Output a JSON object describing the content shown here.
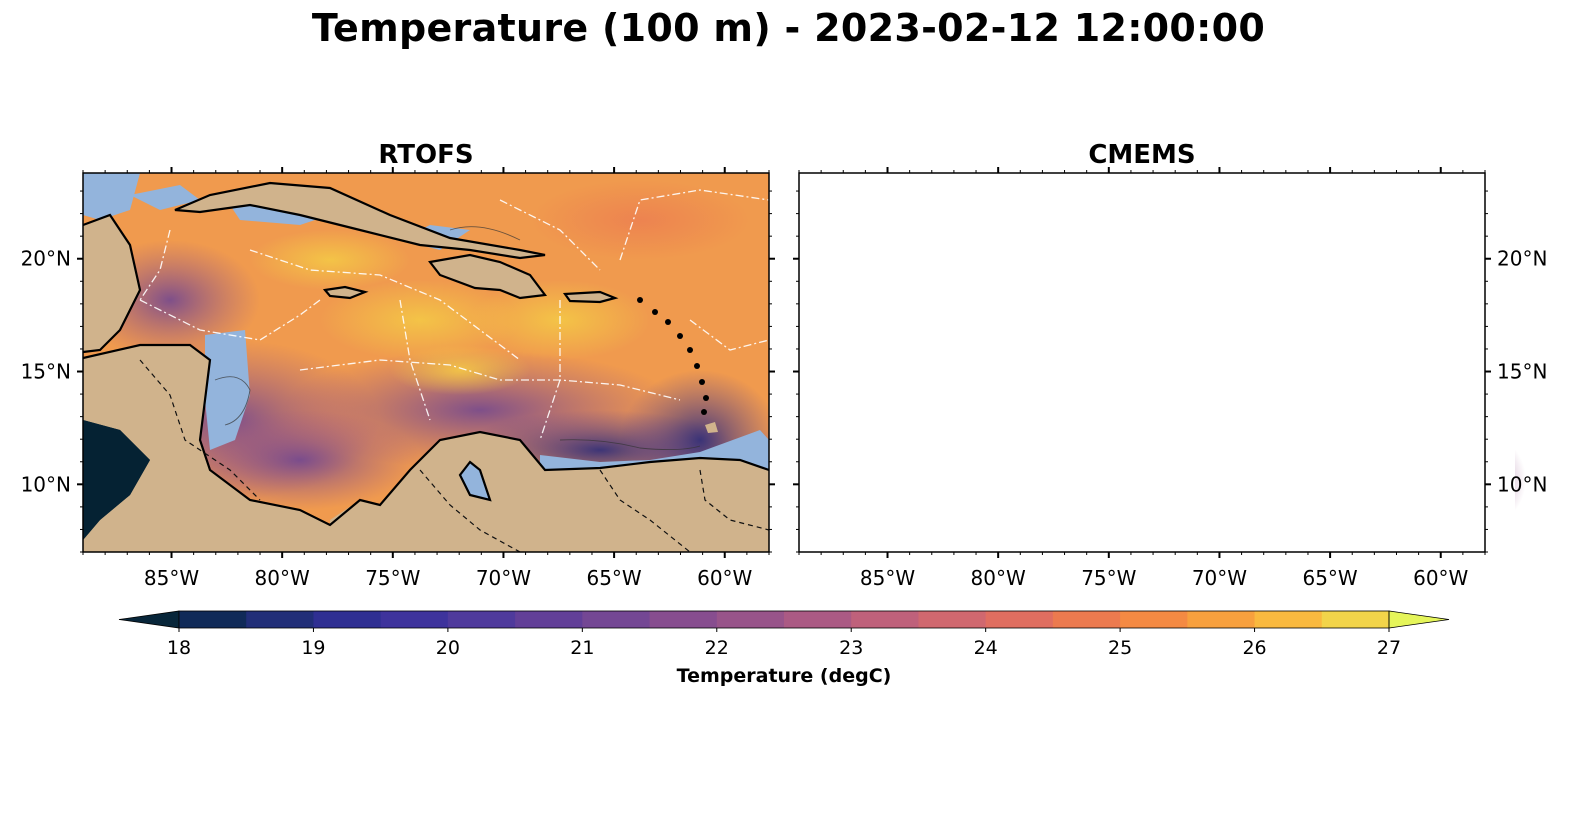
{
  "figure": {
    "title": "Temperature (100 m) - 2023-02-12 12:00:00"
  },
  "panels": [
    {
      "id": "rtofs",
      "title": "RTOFS",
      "lat_labels_side": "left"
    },
    {
      "id": "cmems",
      "title": "CMEMS",
      "lat_labels_side": "right"
    }
  ],
  "map_extent": {
    "lon_min": -89,
    "lon_max": -58,
    "lat_min": 7,
    "lat_max": 23.8
  },
  "axes": {
    "lon_ticks": [
      {
        "value": -85,
        "label": "85°W"
      },
      {
        "value": -80,
        "label": "80°W"
      },
      {
        "value": -75,
        "label": "75°W"
      },
      {
        "value": -70,
        "label": "70°W"
      },
      {
        "value": -65,
        "label": "65°W"
      },
      {
        "value": -60,
        "label": "60°W"
      }
    ],
    "lat_ticks": [
      {
        "value": 20,
        "label": "20°N"
      },
      {
        "value": 15,
        "label": "15°N"
      },
      {
        "value": 10,
        "label": "10°N"
      }
    ]
  },
  "colorbar": {
    "label": "Temperature (degC)",
    "min": 18,
    "max": 27,
    "step": 0.5,
    "extend": "both",
    "ticks": [
      "18",
      "19",
      "20",
      "21",
      "22",
      "23",
      "24",
      "25",
      "26",
      "27"
    ],
    "colors": [
      "#08263a",
      "#102a58",
      "#212e78",
      "#2f2f92",
      "#3e339c",
      "#4f3a9c",
      "#623f98",
      "#744794",
      "#874d8f",
      "#98548a",
      "#ab5a84",
      "#bf617b",
      "#d0686f",
      "#e06e60",
      "#ec7a4f",
      "#f48a43",
      "#f7a03e",
      "#f9b93f",
      "#f2d44a",
      "#e5f55a"
    ]
  },
  "colors": {
    "land": "#d0b38c",
    "shelf": "#93b4dc",
    "pacific": "#052233",
    "rtofs_ocean_base": "#f09a4e",
    "cmems_ocean_base": "#f7b94a"
  }
}
